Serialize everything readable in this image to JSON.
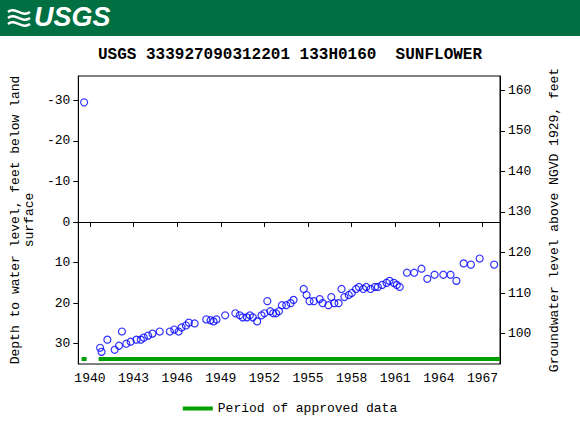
{
  "header": {
    "text": "USGS",
    "color": "#006f41"
  },
  "chart_data": {
    "type": "scatter",
    "title": "USGS 333927090312201 133H0160  SUNFLOWER",
    "y_label": "Depth to water level, feet below land\nsurface",
    "y2_label": "Groundwater level above NGVD 1929, feet",
    "x": [
      1939.6,
      1940.7,
      1940.8,
      1941.2,
      1941.7,
      1942.0,
      1942.2,
      1942.5,
      1942.8,
      1943.2,
      1943.5,
      1943.7,
      1944.0,
      1944.3,
      1944.8,
      1945.5,
      1945.8,
      1946.1,
      1946.3,
      1946.6,
      1946.8,
      1947.2,
      1948.0,
      1948.3,
      1948.5,
      1948.7,
      1949.3,
      1950.0,
      1950.3,
      1950.5,
      1950.8,
      1951.0,
      1951.2,
      1951.5,
      1951.8,
      1952.0,
      1952.2,
      1952.4,
      1952.6,
      1952.8,
      1953.0,
      1953.2,
      1953.5,
      1953.8,
      1954.0,
      1954.7,
      1954.9,
      1955.1,
      1955.4,
      1955.8,
      1956.0,
      1956.4,
      1956.6,
      1956.8,
      1957.1,
      1957.3,
      1957.5,
      1957.8,
      1958.0,
      1958.3,
      1958.5,
      1958.8,
      1959.0,
      1959.3,
      1959.6,
      1959.8,
      1960.1,
      1960.4,
      1960.6,
      1960.9,
      1961.1,
      1961.3,
      1961.8,
      1962.3,
      1962.8,
      1963.2,
      1963.7,
      1964.3,
      1964.8,
      1965.2,
      1965.7,
      1966.2,
      1966.8,
      1967.8
    ],
    "series": [
      {
        "color": "#0000ff",
        "marker": "open_circle",
        "values": [
          -29.5,
          31,
          32,
          29,
          31.5,
          30.5,
          27,
          30,
          29.5,
          29,
          29,
          28.5,
          28,
          27.5,
          27,
          27,
          26.5,
          27,
          26,
          25.5,
          24.8,
          25,
          24,
          24.2,
          24.5,
          24,
          23,
          22.5,
          23,
          23.5,
          23.5,
          23,
          23.5,
          24.5,
          23,
          22.5,
          19.5,
          22,
          22.5,
          22.5,
          22,
          20.5,
          20.5,
          20,
          19.2,
          16.5,
          18,
          19.5,
          19.5,
          19,
          20,
          20.5,
          18.5,
          20,
          20,
          16.5,
          18.5,
          18,
          17.5,
          16.5,
          16,
          16.5,
          16,
          16.5,
          16,
          16,
          15.5,
          15,
          14.5,
          15,
          15.5,
          16,
          12.5,
          12.5,
          11.5,
          14,
          13,
          13,
          13,
          14.5,
          10.2,
          10.5,
          9,
          10.5
        ]
      }
    ],
    "approved_data": {
      "name": "Period of approved data",
      "color": "#00a000",
      "periods": [
        [
          1939.5,
          1939.7
        ],
        [
          1940.6,
          1968.2
        ]
      ]
    },
    "xlim": [
      1939.2,
      1968.2
    ],
    "xticks": [
      1940,
      1943,
      1946,
      1949,
      1952,
      1955,
      1958,
      1961,
      1964,
      1967
    ],
    "ylim": [
      35,
      -36
    ],
    "yticks": [
      -30,
      -20,
      -10,
      0,
      10,
      20,
      30
    ],
    "y2lim": [
      92.5,
      163.5
    ],
    "y2ticks": [
      100,
      110,
      120,
      130,
      140,
      150,
      160
    ],
    "grid": false,
    "legend": "bottom"
  }
}
